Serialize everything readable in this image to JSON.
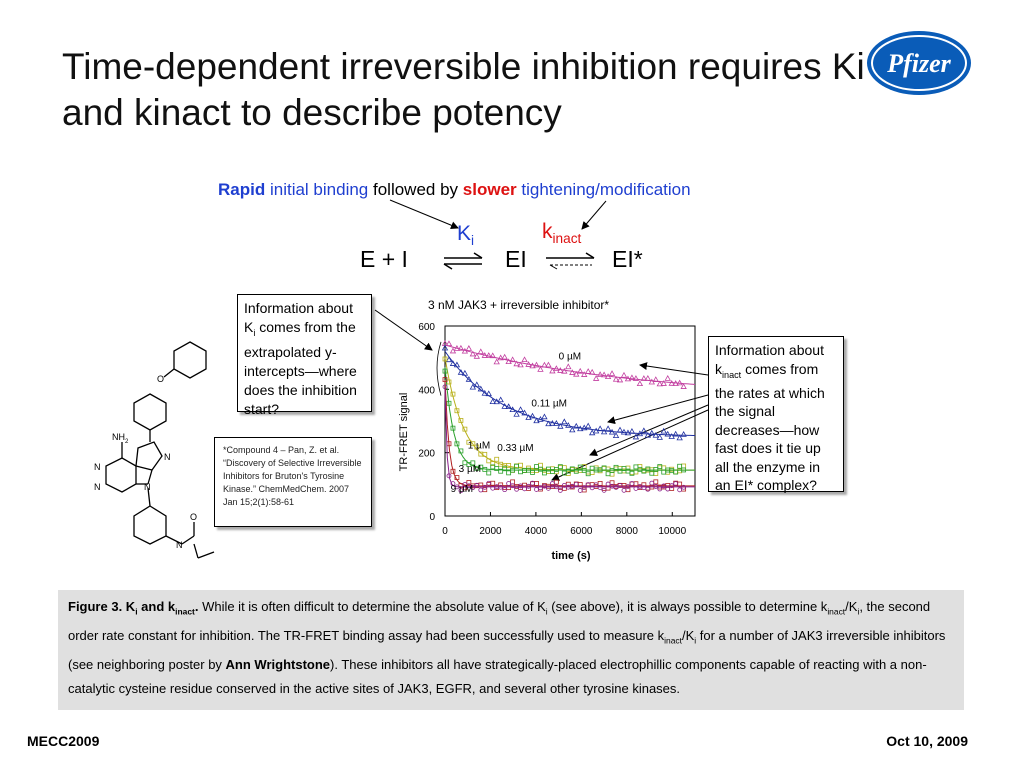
{
  "slide": {
    "title": "Time-dependent irreversible inhibition requires Ki and kinact to describe potency",
    "logo_text": "Pfizer",
    "colors": {
      "blue": "#1f3fd0",
      "red": "#dd1111",
      "logo": "#0a5cb8",
      "caption_bg": "#e0e0e0"
    }
  },
  "header": {
    "rapid": "Rapid",
    "initial_binding": "initial binding",
    "followed_by": "followed by",
    "slower": "slower",
    "tightening": "tightening/modification"
  },
  "scheme": {
    "left": "E + I",
    "middle": "EI",
    "right": "EI*",
    "ki": "K",
    "ki_sub": "i",
    "kinact": "k",
    "kinact_sub": "inact"
  },
  "info_left": {
    "line1": "Information about",
    "k": "K",
    "k_sub": "i",
    "rest": "comes from the extrapolated y-intercepts—where does the inhibition start?"
  },
  "info_right": {
    "line1": "Information about",
    "k": "k",
    "k_sub": "inact",
    "rest": "comes from the rates at which the signal decreases—how fast does it tie up all the enzyme in an EI* complex?"
  },
  "citation": "*Compound 4 – Pan, Z. et al. “Discovery of Selective Irreversible Inhibitors for Bruton's Tyrosine Kinase.” ChemMedChem. 2007 Jan 15;2(1):58-61",
  "molecule": {
    "nh2_label": "NH",
    "nh2_sub": "2",
    "n_label": "N",
    "o_label": "O"
  },
  "chart_data": {
    "type": "scatter",
    "title": "3 nM JAK3 + irreversible inhibitor*",
    "xlabel": "time (s)",
    "ylabel": "TR-FRET signal",
    "xlim": [
      0,
      11000
    ],
    "ylim": [
      0,
      600
    ],
    "x_ticks": [
      0,
      2000,
      4000,
      6000,
      8000,
      10000
    ],
    "y_ticks": [
      0,
      200,
      400,
      600
    ],
    "grid": false,
    "series": [
      {
        "name": "0 µM",
        "color": "#c23fa0",
        "y0": 540,
        "plateau": 370,
        "k": 0.00012,
        "symbol": "triangle"
      },
      {
        "name": "0.11 µM",
        "color": "#1f2fa0",
        "y0": 520,
        "plateau": 250,
        "k": 0.00038,
        "symbol": "triangle"
      },
      {
        "name": "0.33 µM",
        "color": "#b8b01a",
        "y0": 500,
        "plateau": 145,
        "k": 0.0012,
        "symbol": "square"
      },
      {
        "name": "1 µM",
        "color": "#2aa02a",
        "y0": 470,
        "plateau": 145,
        "k": 0.0026,
        "symbol": "square"
      },
      {
        "name": "3 µM",
        "color": "#b02020",
        "y0": 430,
        "plateau": 95,
        "k": 0.0055,
        "symbol": "square"
      },
      {
        "name": "9 µM",
        "color": "#8a1f8a",
        "y0": 400,
        "plateau": 92,
        "k": 0.012,
        "symbol": "circle"
      }
    ]
  },
  "caption": {
    "fig_label": "Figure 3.  K",
    "fig_sub1": "i",
    "fig_and": " and k",
    "fig_sub2": "inact",
    "fig_dot": ".",
    "t1": "  While it is often difficult to determine the absolute value of K",
    "t1_sub": "i",
    "t2": " (see above), it is always possible to determine k",
    "t2_sub": "inact",
    "t3": "/K",
    "t3_sub": "i",
    "t4": ", the second order rate constant for inhibition.  The TR-FRET binding assay had been successfully used to measure k",
    "t4_sub": "inact",
    "t5": "/K",
    "t5_sub": "i",
    "t6": " for a number of JAK3 irreversible inhibitors (see neighboring poster by ",
    "author": "Ann Wrightstone",
    "t7": ").  These inhibitors all have strategically-placed electrophillic components capable of reacting with a non-catalytic cysteine residue conserved in the active sites of JAK3, EGFR, and several other tyrosine kinases."
  },
  "footer": {
    "left": "MECC2009",
    "right": "Oct 10, 2009"
  }
}
